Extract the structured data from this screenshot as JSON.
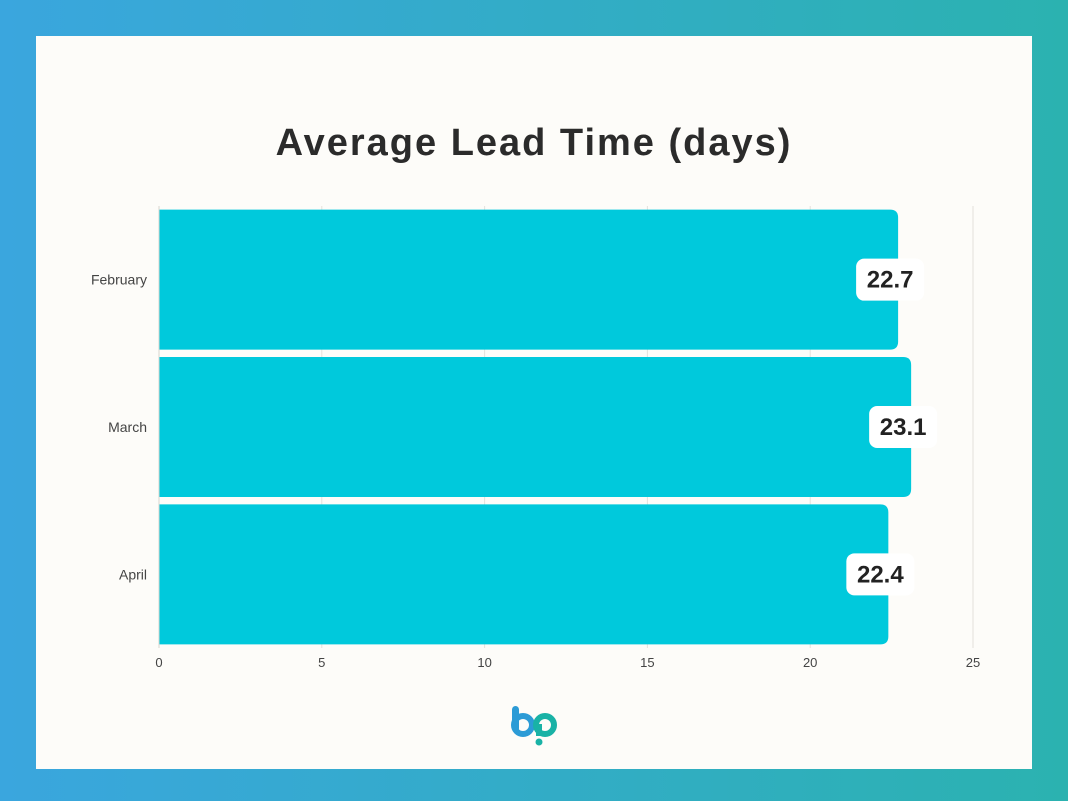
{
  "chart_data": {
    "type": "bar",
    "orientation": "horizontal",
    "title": "Average Lead Time (days)",
    "xlabel": "",
    "ylabel": "",
    "categories": [
      "February",
      "March",
      "April"
    ],
    "values": [
      22.7,
      23.1,
      22.4
    ],
    "xlim": [
      0,
      25
    ],
    "xticks": [
      0,
      5,
      10,
      15,
      20,
      25
    ],
    "grid": true,
    "bar_color": "#00c9dc"
  },
  "colors": {
    "background_left": "#3aa6de",
    "background_right": "#2bb2b0",
    "card": "#fdfcf9",
    "logo_blue": "#2c9bd6",
    "logo_teal": "#19b2a6"
  },
  "logo": {
    "icon": "bp-logo-icon"
  }
}
